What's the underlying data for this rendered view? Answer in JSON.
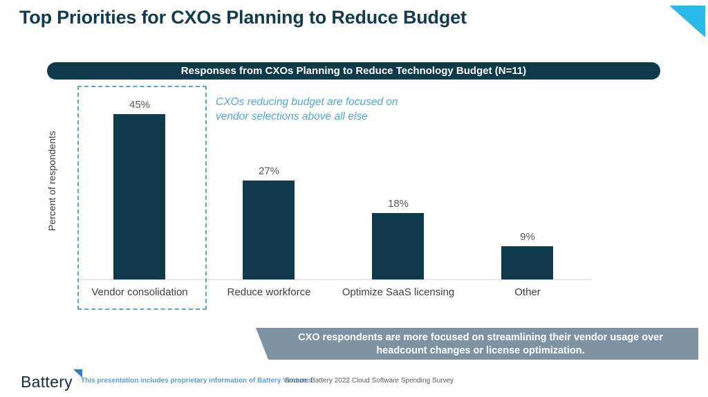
{
  "slide": {
    "title": "Top Priorities for CXOs Planning to Reduce Budget",
    "banner": "Responses from CXOs Planning to Reduce Technology Budget (N=11)",
    "annotation": "CXOs reducing budget are focused on vendor selections above all else",
    "callout": "CXO respondents are more focused on streamlining their vendor usage over headcount changes or license optimization."
  },
  "chart_data": {
    "type": "bar",
    "categories": [
      "Vendor consolidation",
      "Reduce workforce",
      "Optimize SaaS licensing",
      "Other"
    ],
    "values": [
      45,
      27,
      18,
      9
    ],
    "value_labels": [
      "45%",
      "27%",
      "18%",
      "9%"
    ],
    "title": "Responses from CXOs Planning to Reduce Technology Budget (N=11)",
    "xlabel": "",
    "ylabel": "Percent of respondents",
    "ylim": [
      0,
      52
    ],
    "grid": false,
    "legend": false,
    "bar_color": "#0E3A4C",
    "highlighted_category": "Vendor consolidation",
    "highlight_style": "dashed-blue-box"
  },
  "footer": {
    "logo_text": "Battery",
    "disclaimer": "This presentation includes proprietary information of Battery Ventures",
    "source": "Source: Battery 2022 Cloud Software Spending Survey"
  },
  "colors": {
    "navy": "#0E3A4C",
    "cyan_accent": "#29B9E8",
    "annotation_blue": "#4FA5DE",
    "callout_gray": "#7D92A3",
    "value_label_gray": "#595959",
    "axis_line_gray": "#D9D9D9"
  }
}
